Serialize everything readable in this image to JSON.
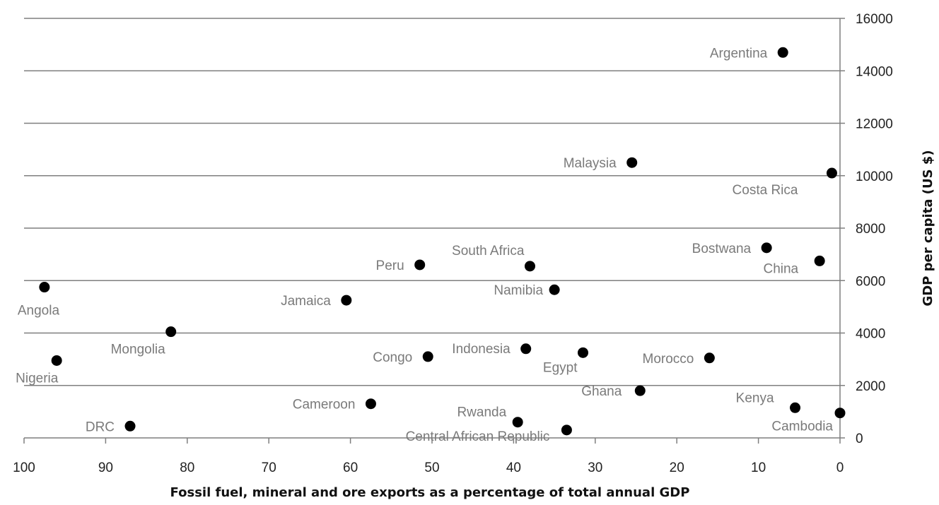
{
  "chart_data": {
    "type": "scatter",
    "title": "",
    "xlabel": "Fossil fuel, mineral and ore exports as a percentage of total annual GDP",
    "ylabel": "GDP per capita (US $)",
    "xlim": [
      100,
      0
    ],
    "x_reversed": true,
    "ylim": [
      0,
      16000
    ],
    "x_ticks": [
      100,
      90,
      80,
      70,
      60,
      50,
      40,
      30,
      20,
      10,
      0
    ],
    "y_ticks": [
      0,
      2000,
      4000,
      6000,
      8000,
      10000,
      12000,
      14000,
      16000
    ],
    "grid": "horizontal",
    "y_axis_side": "right",
    "legend": "none",
    "points": [
      {
        "label": "Argentina",
        "x": 7,
        "y": 14700
      },
      {
        "label": "Malaysia",
        "x": 25.5,
        "y": 10500
      },
      {
        "label": "Costa Rica",
        "x": 1,
        "y": 10100
      },
      {
        "label": "Bostwana",
        "x": 9,
        "y": 7250
      },
      {
        "label": "China",
        "x": 2.5,
        "y": 6750
      },
      {
        "label": "South Africa",
        "x": 38,
        "y": 6550
      },
      {
        "label": "Peru",
        "x": 51.5,
        "y": 6600
      },
      {
        "label": "Namibia",
        "x": 35,
        "y": 5650
      },
      {
        "label": "Angola",
        "x": 97.5,
        "y": 5750
      },
      {
        "label": "Jamaica",
        "x": 60.5,
        "y": 5250
      },
      {
        "label": "Mongolia",
        "x": 82,
        "y": 4050
      },
      {
        "label": "Indonesia",
        "x": 38.5,
        "y": 3400
      },
      {
        "label": "Egypt",
        "x": 31.5,
        "y": 3250
      },
      {
        "label": "Congo",
        "x": 50.5,
        "y": 3100
      },
      {
        "label": "Morocco",
        "x": 16,
        "y": 3050
      },
      {
        "label": "Nigeria",
        "x": 96,
        "y": 2950
      },
      {
        "label": "Ghana",
        "x": 24.5,
        "y": 1800
      },
      {
        "label": "Cameroon",
        "x": 57.5,
        "y": 1300
      },
      {
        "label": "Kenya",
        "x": 5.5,
        "y": 1150
      },
      {
        "label": "Cambodia",
        "x": 0,
        "y": 950
      },
      {
        "label": "Rwanda",
        "x": 39.5,
        "y": 600
      },
      {
        "label": "DRC",
        "x": 87,
        "y": 450
      },
      {
        "label": "Central African Republic",
        "x": 33.5,
        "y": 300
      }
    ]
  }
}
